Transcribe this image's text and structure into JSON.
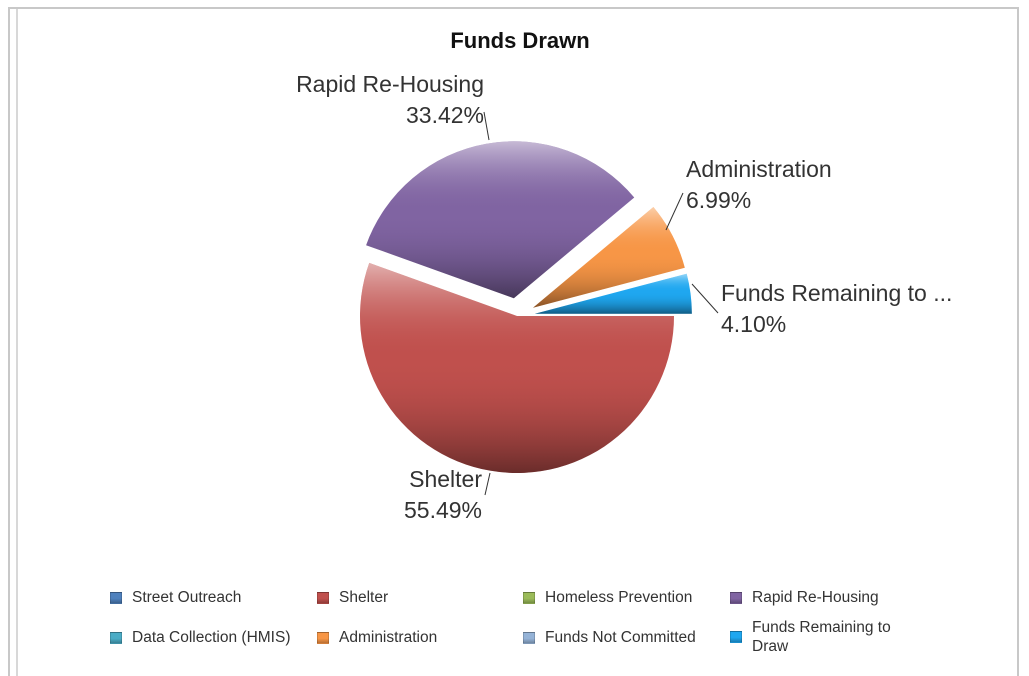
{
  "chart_data": {
    "type": "pie",
    "title": "Funds Drawn",
    "slices": [
      {
        "name": "Shelter",
        "value": 55.49,
        "label": "55.49%",
        "color": "#c0504d"
      },
      {
        "name": "Rapid Re-Housing",
        "value": 33.42,
        "label": "33.42%",
        "color": "#8064a2"
      },
      {
        "name": "Administration",
        "value": 6.99,
        "label": "6.99%",
        "color": "#f79646"
      },
      {
        "name": "Funds Remaining to ...",
        "value": 4.1,
        "label": "4.10%",
        "color": "#1fa7f0"
      }
    ],
    "legend": [
      {
        "name": "Street Outreach",
        "color": "#4f81bd"
      },
      {
        "name": "Shelter",
        "color": "#c0504d"
      },
      {
        "name": "Homeless Prevention",
        "color": "#9bbb59"
      },
      {
        "name": "Rapid Re-Housing",
        "color": "#8064a2"
      },
      {
        "name": "Data Collection (HMIS)",
        "color": "#4bacc6"
      },
      {
        "name": "Administration",
        "color": "#f79646"
      },
      {
        "name": "Funds Not Committed",
        "color": "#95b3d7"
      },
      {
        "name": "Funds Remaining to Draw",
        "color": "#1fa7f0"
      }
    ],
    "legend_position": "bottom"
  }
}
